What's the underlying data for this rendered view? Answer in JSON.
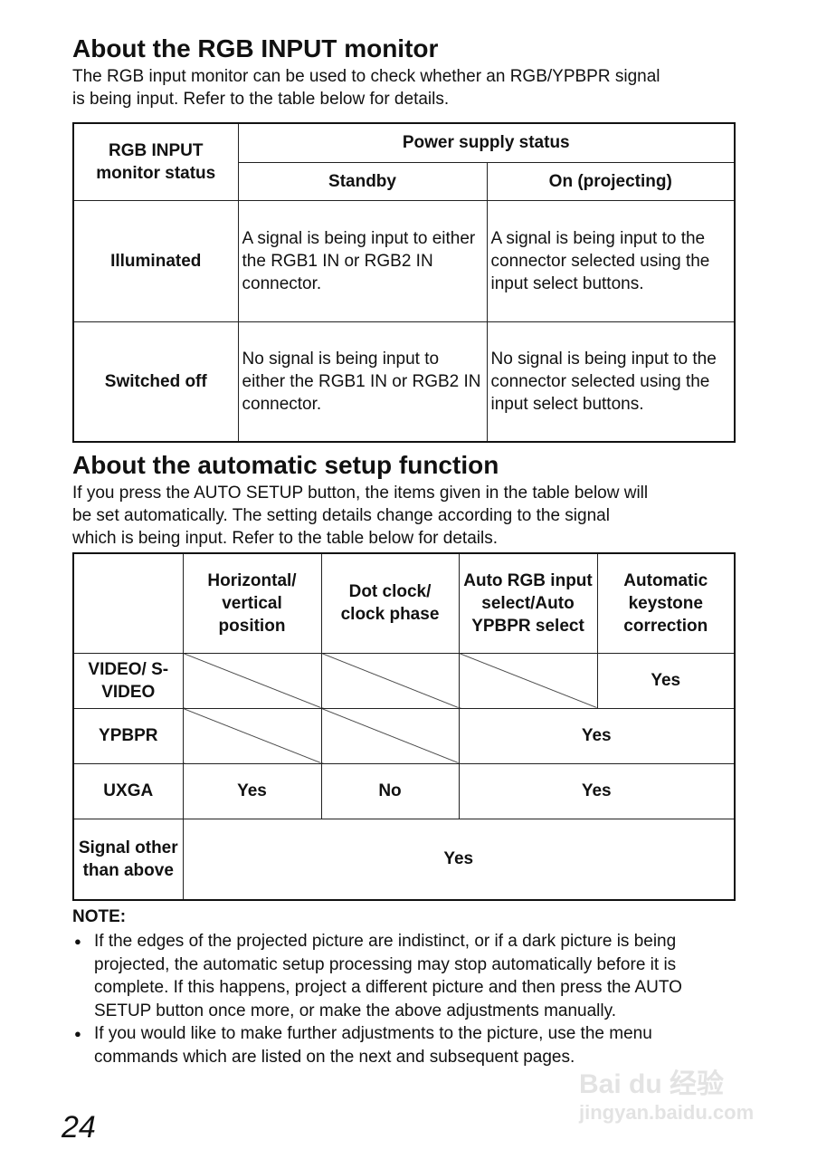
{
  "section1": {
    "title": "About the RGB INPUT monitor",
    "intro_line1": "The RGB input monitor can be used to check whether an RGB/YPBPR signal",
    "intro_line2": "is being input. Refer to the table below for details.",
    "table": {
      "corner_header": "RGB INPUT monitor status",
      "group_header": "Power supply status",
      "col_standby": "Standby",
      "col_on": "On (projecting)",
      "rows": [
        {
          "status": "Illuminated",
          "standby": "A signal is being input to either the RGB1 IN or RGB2 IN connector.",
          "on": "A signal is being input to the connector selected using the input select buttons."
        },
        {
          "status": "Switched off",
          "standby": "No signal is being input to either the RGB1 IN or RGB2 IN connector.",
          "on": "No signal is being input to the connector selected using the input select buttons."
        }
      ]
    }
  },
  "section2": {
    "title": "About the automatic setup function",
    "intro_line1": "If you press the AUTO SETUP button, the items given in the table below will",
    "intro_line2": "be set automatically. The setting details change according to the signal",
    "intro_line3": "which is being input. Refer to the table below for details.",
    "table": {
      "headers": [
        "Horizontal/ vertical position",
        "Dot clock/ clock phase",
        "Auto RGB input select/Auto YPBPR select",
        "Automatic keystone correction"
      ],
      "row_video": {
        "label": "VIDEO/ S-VIDEO",
        "keystone": "Yes"
      },
      "row_ypbpr": {
        "label": "YPBPR",
        "auto": "Yes"
      },
      "row_uxga": {
        "label": "UXGA",
        "position": "Yes",
        "clock": "No",
        "auto": "Yes"
      },
      "row_other": {
        "label": "Signal other than above",
        "all": "Yes"
      }
    }
  },
  "note": {
    "heading": "NOTE:",
    "items": [
      "If the edges of the projected picture are indistinct, or if a dark picture is being projected, the automatic setup processing may stop automatically before it is complete. If this happens, project a different picture and then press the AUTO SETUP button once more, or make the above adjustments manually.",
      "If you would like to make further adjustments to the picture, use the menu commands which are listed on the next and subsequent pages."
    ]
  },
  "page_number": "24",
  "watermark": {
    "logo": "Bai du 经验",
    "url": "jingyan.baidu.com"
  }
}
